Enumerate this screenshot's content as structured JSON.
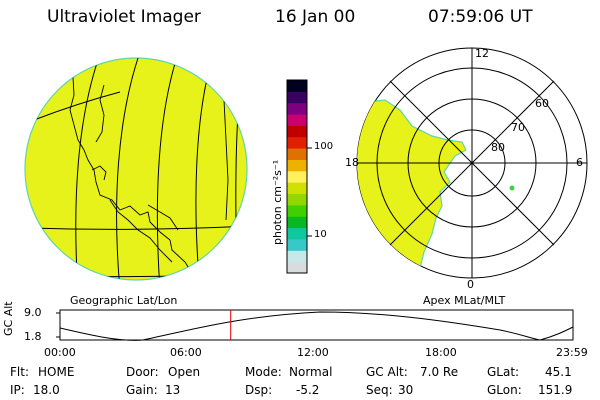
{
  "header": {
    "title": "Ultraviolet Imager",
    "date": "16 Jan 00",
    "time": "07:59:06 UT"
  },
  "colorbar": {
    "unit_label": "photon cm⁻²s⁻¹",
    "tick_labels": [
      "100",
      "10"
    ],
    "colors": [
      "#d8dcdc",
      "#c6e8e8",
      "#38c8c8",
      "#10c8a0",
      "#08b820",
      "#40d000",
      "#90d800",
      "#d0e000",
      "#fff060",
      "#f0b000",
      "#e07000",
      "#e02000",
      "#c00000",
      "#c80070",
      "#7c0080",
      "#380060",
      "#000020"
    ]
  },
  "geo_panel": {
    "label": "Geographic Lat/Lon",
    "fill_color": "#e7f21a"
  },
  "polar_panel": {
    "label": "Apex MLat/MLT",
    "mlt_labels": {
      "top": "12",
      "left": "18",
      "right": "6",
      "bottom": "0"
    },
    "lat_labels": [
      "60",
      "70",
      "80"
    ]
  },
  "timeline": {
    "axis_label": "GC Alt",
    "y_ticks": [
      "9.0",
      "1.8"
    ],
    "x_ticks": [
      "00:00",
      "06:00",
      "12:00",
      "18:00",
      "23:59"
    ],
    "current_time_hours": 7.985,
    "marker_color": "#e00000"
  },
  "status": {
    "row1": [
      {
        "label": "Flt:",
        "value": "HOME"
      },
      {
        "label": "Door:",
        "value": "Open"
      },
      {
        "label": "Mode:",
        "value": "Normal"
      },
      {
        "label": "GC Alt:",
        "value": "7.0 Re"
      },
      {
        "label": "GLat:",
        "value": "45.1"
      }
    ],
    "row2": [
      {
        "label": "IP:",
        "value": "18.0"
      },
      {
        "label": "Gain:",
        "value": "13"
      },
      {
        "label": "Dsp:",
        "value": "-5.2"
      },
      {
        "label": "Seq:",
        "value": "30"
      },
      {
        "label": "GLon:",
        "value": "151.9"
      }
    ]
  }
}
